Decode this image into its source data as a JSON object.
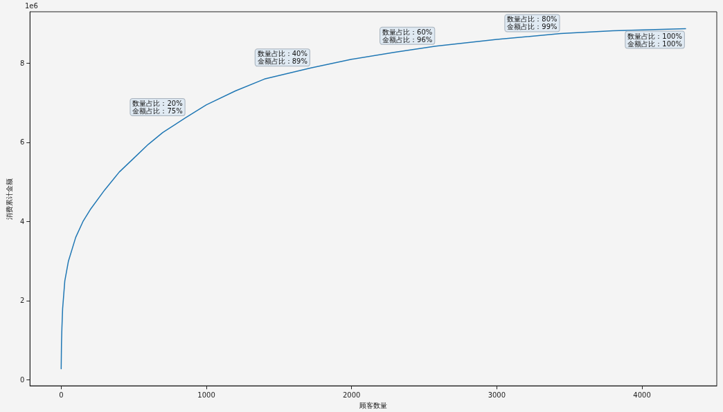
{
  "chart_data": {
    "type": "line",
    "xlabel": "顾客数量",
    "ylabel": "消费累计金额",
    "x": [
      0,
      2,
      5,
      10,
      25,
      50,
      100,
      150,
      200,
      300,
      400,
      500,
      600,
      700,
      860,
      1000,
      1200,
      1400,
      1720,
      2000,
      2300,
      2580,
      3000,
      3440,
      3800,
      4300
    ],
    "series": [
      {
        "color": "#1f77b4",
        "values": [
          0.28,
          0.9,
          1.3,
          1.8,
          2.5,
          3.0,
          3.6,
          4.0,
          4.3,
          4.8,
          5.25,
          5.6,
          5.95,
          6.25,
          6.63,
          6.95,
          7.3,
          7.6,
          7.88,
          8.1,
          8.28,
          8.43,
          8.6,
          8.75,
          8.82,
          8.87
        ]
      }
    ],
    "xlim": [
      -215,
      4515
    ],
    "ylim": [
      -0.15,
      9.3
    ],
    "xticks": [
      0,
      1000,
      2000,
      3000,
      4000
    ],
    "yticks": [
      0,
      2,
      4,
      6,
      8
    ],
    "grid": false,
    "marker": "none",
    "line_style": "solid",
    "annotations": [
      "1e6",
      {
        "text": "数量占比：20%\n金额占比：75%",
        "x": 860,
        "y": 6.63
      },
      {
        "text": "数量占比：40%\n金额占比：89%",
        "x": 1720,
        "y": 7.88
      },
      {
        "text": "数量占比：60%\n金额占比：96%",
        "x": 2580,
        "y": 8.43
      },
      {
        "text": "数量占比：80%\n金额占比：99%",
        "x": 3440,
        "y": 8.75
      },
      {
        "text": "数量占比：100%\n金额占比：100%",
        "x": 4300,
        "y": 8.87
      }
    ]
  }
}
